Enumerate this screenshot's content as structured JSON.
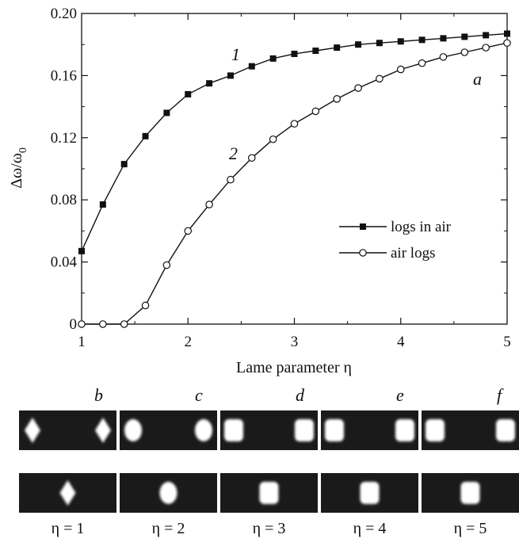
{
  "chart_data": {
    "type": "line",
    "xlabel": "Lame parameter η",
    "ylabel": "Δω/ω",
    "ylabel_sub": "0",
    "xlim": [
      1,
      5
    ],
    "ylim": [
      0,
      0.2
    ],
    "xticks": [
      "1",
      "2",
      "3",
      "4",
      "5"
    ],
    "yticks": [
      "0",
      "0.04",
      "0.08",
      "0.12",
      "0.16",
      "0.20"
    ],
    "grid": false,
    "legend_position": "lower-right",
    "panel_label": "a",
    "x": [
      1.0,
      1.2,
      1.4,
      1.6,
      1.8,
      2.0,
      2.2,
      2.4,
      2.6,
      2.8,
      3.0,
      3.2,
      3.4,
      3.6,
      3.8,
      4.0,
      4.2,
      4.4,
      4.6,
      4.8,
      5.0
    ],
    "series": [
      {
        "name": "logs in air",
        "curve_label": "1",
        "marker": "filled-square",
        "values": [
          0.047,
          0.077,
          0.103,
          0.121,
          0.136,
          0.148,
          0.155,
          0.16,
          0.166,
          0.171,
          0.174,
          0.176,
          0.178,
          0.18,
          0.181,
          0.182,
          0.183,
          0.184,
          0.185,
          0.186,
          0.187
        ]
      },
      {
        "name": "air logs",
        "curve_label": "2",
        "marker": "open-circle",
        "values": [
          0.0,
          0.0,
          0.0,
          0.012,
          0.038,
          0.06,
          0.077,
          0.093,
          0.107,
          0.119,
          0.129,
          0.137,
          0.145,
          0.152,
          0.158,
          0.164,
          0.168,
          0.172,
          0.175,
          0.178,
          0.181
        ]
      }
    ]
  },
  "field_panels": [
    {
      "label": "b",
      "eta": "η = 1",
      "shape": "diamond"
    },
    {
      "label": "c",
      "eta": "η = 2",
      "shape": "circle"
    },
    {
      "label": "d",
      "eta": "η = 3",
      "shape": "rounded-square"
    },
    {
      "label": "e",
      "eta": "η = 4",
      "shape": "rounded-square"
    },
    {
      "label": "f",
      "eta": "η = 5",
      "shape": "rounded-square"
    }
  ],
  "colors": {
    "line": "#111111",
    "panel_background": "#1a1a1a",
    "field_spot": "#ffffff"
  }
}
